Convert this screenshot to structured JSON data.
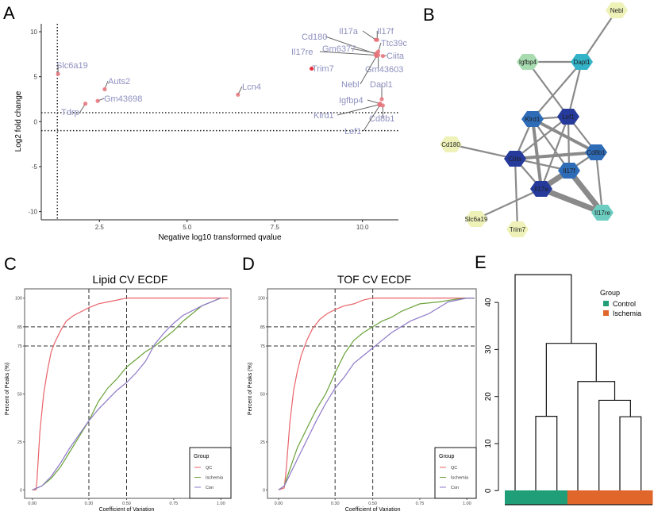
{
  "panel_letters": [
    "A",
    "B",
    "C",
    "D",
    "E"
  ],
  "chart_data": [
    {
      "panel": "A",
      "type": "scatter",
      "xlabel": "Negative log10 transformed qvalue",
      "ylabel": "Log2 fold change",
      "xlim": [
        1.0,
        11.0
      ],
      "ylim": [
        -11,
        11
      ],
      "xticks": [
        "2.5",
        "5.0",
        "7.5",
        "10.0"
      ],
      "xtick_values": [
        2.5,
        5.0,
        7.5,
        10.0
      ],
      "yticks": [
        "-10",
        "-5",
        "0",
        "5",
        "10"
      ],
      "ytick_values": [
        -10,
        -5,
        0,
        5,
        10
      ],
      "thresholds": {
        "qvalue_line": 1.3,
        "fold_lines": [
          -1,
          1
        ]
      },
      "point_color": "#e8737a",
      "label_color": "#8e90bf",
      "points": [
        {
          "label": "Slc6a19",
          "x": 1.32,
          "y": 5.3
        },
        {
          "label": "Auts2",
          "x": 2.65,
          "y": 3.6
        },
        {
          "label": "Gm43698",
          "x": 2.45,
          "y": 2.3
        },
        {
          "label": "Tdrp",
          "x": 2.1,
          "y": 2.0
        },
        {
          "label": "Lcn4",
          "x": 6.45,
          "y": 3.0
        },
        {
          "label": "Trim7",
          "x": 8.55,
          "y": 5.9
        },
        {
          "label": "Il17a",
          "x": 10.38,
          "y": 9.1
        },
        {
          "label": "Il17f",
          "x": 10.42,
          "y": 9.1
        },
        {
          "label": "Cd180",
          "x": 10.4,
          "y": 7.5
        },
        {
          "label": "Ttc39c",
          "x": 10.45,
          "y": 7.8
        },
        {
          "label": "Gm6377",
          "x": 10.4,
          "y": 7.6
        },
        {
          "label": "Il17re",
          "x": 10.38,
          "y": 7.4
        },
        {
          "label": "Ciita",
          "x": 10.58,
          "y": 7.3
        },
        {
          "label": "Gm43603",
          "x": 10.45,
          "y": 7.4
        },
        {
          "label": "Nebl",
          "x": 10.4,
          "y": 7.3
        },
        {
          "label": "Dapl1",
          "x": 10.55,
          "y": 2.5
        },
        {
          "label": "Igfbp4",
          "x": 10.5,
          "y": 2.0
        },
        {
          "label": "Klrd1",
          "x": 10.48,
          "y": 1.9
        },
        {
          "label": "Cd8b1",
          "x": 10.58,
          "y": 1.8
        },
        {
          "label": "Lef1",
          "x": 10.5,
          "y": 1.85
        }
      ]
    },
    {
      "panel": "B",
      "type": "network",
      "nodes": [
        {
          "id": "Nebl",
          "color": "#eef2b8"
        },
        {
          "id": "Igfbp4",
          "color": "#a8dcb0"
        },
        {
          "id": "Dapl1",
          "color": "#33b3c8"
        },
        {
          "id": "Klrd1",
          "color": "#2e6cb8"
        },
        {
          "id": "Lef1",
          "color": "#253a9a"
        },
        {
          "id": "Cd180",
          "color": "#eef2b8"
        },
        {
          "id": "Ciita",
          "color": "#253a9a"
        },
        {
          "id": "Cd8b1",
          "color": "#2e6cb8"
        },
        {
          "id": "Il17f",
          "color": "#2e6cb8"
        },
        {
          "id": "Il17a",
          "color": "#253a9a"
        },
        {
          "id": "Il17re",
          "color": "#6ccdc0"
        },
        {
          "id": "Slc6a19",
          "color": "#eef2b8"
        },
        {
          "id": "Trim7",
          "color": "#eef2b8"
        }
      ],
      "edges": [
        [
          "Nebl",
          "Dapl1",
          1
        ],
        [
          "Igfbp4",
          "Dapl1",
          1
        ],
        [
          "Igfbp4",
          "Lef1",
          1
        ],
        [
          "Dapl1",
          "Klrd1",
          1
        ],
        [
          "Dapl1",
          "Lef1",
          1
        ],
        [
          "Klrd1",
          "Lef1",
          1
        ],
        [
          "Klrd1",
          "Ciita",
          1
        ],
        [
          "Klrd1",
          "Cd8b1",
          2
        ],
        [
          "Klrd1",
          "Il17a",
          2
        ],
        [
          "Klrd1",
          "Il17f",
          1
        ],
        [
          "Lef1",
          "Ciita",
          1
        ],
        [
          "Lef1",
          "Cd8b1",
          1
        ],
        [
          "Lef1",
          "Il17f",
          1
        ],
        [
          "Lef1",
          "Il17a",
          1
        ],
        [
          "Cd180",
          "Ciita",
          1
        ],
        [
          "Ciita",
          "Cd8b1",
          2
        ],
        [
          "Ciita",
          "Il17f",
          1
        ],
        [
          "Ciita",
          "Il17a",
          1
        ],
        [
          "Ciita",
          "Trim7",
          1
        ],
        [
          "Cd8b1",
          "Il17f",
          1
        ],
        [
          "Cd8b1",
          "Il17a",
          1
        ],
        [
          "Cd8b1",
          "Il17re",
          1
        ],
        [
          "Il17f",
          "Il17a",
          3
        ],
        [
          "Il17f",
          "Il17re",
          3
        ],
        [
          "Il17a",
          "Il17re",
          3
        ],
        [
          "Il17a",
          "Slc6a19",
          1
        ]
      ],
      "edge_color": "#8a8a8a"
    },
    {
      "panel": "C",
      "type": "line",
      "title": "Lipid CV ECDF",
      "xlabel": "Coefficient of Variation",
      "ylabel": "Percent of Peaks (%)",
      "xlim": [
        -0.04,
        1.04
      ],
      "ylim": [
        -5,
        105
      ],
      "xticks": [
        "0.00",
        "0.30",
        "0.50",
        "0.75",
        "1.00"
      ],
      "xtick_values": [
        0,
        0.3,
        0.5,
        0.75,
        1.0
      ],
      "yticks": [
        "0",
        "25",
        "50",
        "75",
        "85",
        "100"
      ],
      "ytick_values": [
        0,
        25,
        50,
        75,
        85,
        100
      ],
      "ref_lines": {
        "x": [
          0.3,
          0.5
        ],
        "y": [
          75,
          85
        ]
      },
      "legend": {
        "title": "Group",
        "position": "bottom-right"
      },
      "series": [
        {
          "name": "QC",
          "color": "#e8646a",
          "points": [
            [
              0,
              0
            ],
            [
              0.02,
              0
            ],
            [
              0.025,
              5
            ],
            [
              0.04,
              30
            ],
            [
              0.06,
              50
            ],
            [
              0.08,
              62
            ],
            [
              0.1,
              72
            ],
            [
              0.12,
              77
            ],
            [
              0.15,
              83
            ],
            [
              0.18,
              88
            ],
            [
              0.22,
              91
            ],
            [
              0.26,
              93
            ],
            [
              0.3,
              95
            ],
            [
              0.35,
              97
            ],
            [
              0.4,
              98
            ],
            [
              0.45,
              99
            ],
            [
              0.5,
              100
            ],
            [
              1,
              100
            ],
            [
              1.04,
              100
            ]
          ]
        },
        {
          "name": "Ischemia",
          "color": "#6aa23a",
          "points": [
            [
              0,
              0
            ],
            [
              0.05,
              2
            ],
            [
              0.1,
              6
            ],
            [
              0.15,
              12
            ],
            [
              0.2,
              20
            ],
            [
              0.25,
              28
            ],
            [
              0.3,
              36
            ],
            [
              0.35,
              46
            ],
            [
              0.4,
              53
            ],
            [
              0.45,
              58
            ],
            [
              0.5,
              64
            ],
            [
              0.55,
              68
            ],
            [
              0.6,
              72
            ],
            [
              0.65,
              75
            ],
            [
              0.7,
              79
            ],
            [
              0.75,
              83
            ],
            [
              0.8,
              88
            ],
            [
              0.9,
              96
            ],
            [
              1,
              100
            ]
          ]
        },
        {
          "name": "Con",
          "color": "#8e78c8",
          "points": [
            [
              0,
              0
            ],
            [
              0.05,
              2
            ],
            [
              0.1,
              7
            ],
            [
              0.15,
              14
            ],
            [
              0.2,
              22
            ],
            [
              0.25,
              29
            ],
            [
              0.3,
              36
            ],
            [
              0.35,
              42
            ],
            [
              0.4,
              47
            ],
            [
              0.45,
              52
            ],
            [
              0.5,
              56
            ],
            [
              0.55,
              61
            ],
            [
              0.6,
              67
            ],
            [
              0.65,
              76
            ],
            [
              0.7,
              82
            ],
            [
              0.75,
              87
            ],
            [
              0.8,
              91
            ],
            [
              0.9,
              96
            ],
            [
              1,
              100
            ]
          ]
        }
      ]
    },
    {
      "panel": "D",
      "type": "line",
      "title": "TOF CV ECDF",
      "xlabel": "Coefficient of Variation",
      "ylabel": "Percent of Peaks (%)",
      "xlim": [
        -0.04,
        1.04
      ],
      "ylim": [
        -5,
        105
      ],
      "xticks": [
        "0.00",
        "0.30",
        "0.50",
        "0.75",
        "1.00"
      ],
      "xtick_values": [
        0,
        0.3,
        0.5,
        0.75,
        1.0
      ],
      "yticks": [
        "0",
        "25",
        "50",
        "75",
        "85",
        "100"
      ],
      "ytick_values": [
        0,
        25,
        50,
        75,
        85,
        100
      ],
      "ref_lines": {
        "x": [
          0.3,
          0.5
        ],
        "y": [
          75,
          85
        ]
      },
      "legend": {
        "title": "Group",
        "position": "bottom-right"
      },
      "series": [
        {
          "name": "QC",
          "color": "#e8646a",
          "points": [
            [
              0,
              0
            ],
            [
              0.03,
              1
            ],
            [
              0.04,
              10
            ],
            [
              0.06,
              35
            ],
            [
              0.08,
              52
            ],
            [
              0.1,
              62
            ],
            [
              0.12,
              70
            ],
            [
              0.15,
              78
            ],
            [
              0.18,
              84
            ],
            [
              0.22,
              89
            ],
            [
              0.26,
              92
            ],
            [
              0.3,
              94
            ],
            [
              0.35,
              96
            ],
            [
              0.4,
              97
            ],
            [
              0.45,
              99
            ],
            [
              0.5,
              100
            ],
            [
              1,
              100
            ],
            [
              1.04,
              100
            ]
          ]
        },
        {
          "name": "Ischemia",
          "color": "#6aa23a",
          "points": [
            [
              0,
              0
            ],
            [
              0.03,
              2
            ],
            [
              0.05,
              8
            ],
            [
              0.1,
              22
            ],
            [
              0.15,
              32
            ],
            [
              0.2,
              42
            ],
            [
              0.25,
              50
            ],
            [
              0.3,
              61
            ],
            [
              0.35,
              71
            ],
            [
              0.4,
              78
            ],
            [
              0.45,
              82
            ],
            [
              0.5,
              85
            ],
            [
              0.55,
              88
            ],
            [
              0.6,
              90
            ],
            [
              0.65,
              93
            ],
            [
              0.7,
              95
            ],
            [
              0.75,
              97
            ],
            [
              0.85,
              98
            ],
            [
              0.95,
              99.5
            ],
            [
              1,
              100
            ],
            [
              1.04,
              100
            ]
          ]
        },
        {
          "name": "Con",
          "color": "#8e78c8",
          "points": [
            [
              0,
              0
            ],
            [
              0.03,
              2
            ],
            [
              0.05,
              6
            ],
            [
              0.1,
              16
            ],
            [
              0.15,
              26
            ],
            [
              0.2,
              36
            ],
            [
              0.25,
              45
            ],
            [
              0.3,
              53
            ],
            [
              0.35,
              59
            ],
            [
              0.4,
              66
            ],
            [
              0.45,
              70
            ],
            [
              0.5,
              74
            ],
            [
              0.55,
              78
            ],
            [
              0.6,
              82
            ],
            [
              0.65,
              85
            ],
            [
              0.7,
              88
            ],
            [
              0.75,
              90
            ],
            [
              0.8,
              92
            ],
            [
              0.85,
              95
            ],
            [
              0.9,
              98
            ],
            [
              1,
              100
            ],
            [
              1.04,
              100
            ]
          ]
        }
      ]
    },
    {
      "panel": "E",
      "type": "dendrogram",
      "yticks": [
        "0",
        "10",
        "20",
        "30",
        "40"
      ],
      "ytick_values": [
        0,
        10,
        20,
        30,
        40
      ],
      "leaf_groups": [
        "Control",
        "Control",
        "Control",
        "Ischemia",
        "Ischemia",
        "Ischemia",
        "Ischemia"
      ],
      "merges": [
        {
          "a": "L2",
          "b": "L3",
          "height": 15.8
        },
        {
          "a": "L6",
          "b": "L7",
          "height": 15.7
        },
        {
          "a": "L5",
          "b": "M2",
          "height": 19.2
        },
        {
          "a": "L4",
          "b": "M3",
          "height": 23.2
        },
        {
          "a": "M1",
          "b": "M4",
          "height": 31.3
        },
        {
          "a": "L1",
          "b": "M5",
          "height": 45.9
        }
      ],
      "legend": {
        "title": "Group",
        "entries": [
          {
            "name": "Control",
            "color": "#1f9e77"
          },
          {
            "name": "Ischemia",
            "color": "#e0662a"
          }
        ]
      }
    }
  ]
}
